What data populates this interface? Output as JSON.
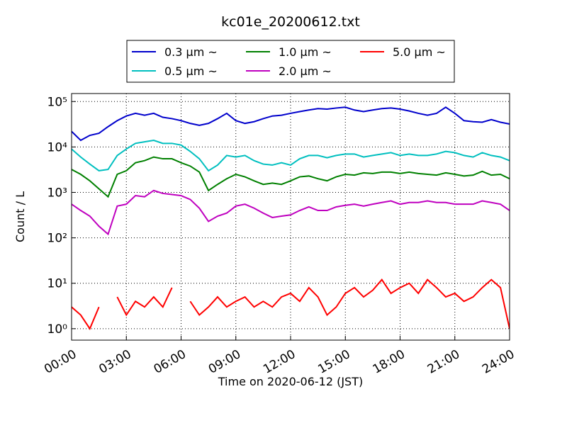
{
  "chart_data": {
    "type": "line",
    "title": "kc01e_20200612.txt",
    "x_label": "Time on 2020-06-12 (JST)",
    "y_label": "Count / L",
    "log_y": true,
    "grid": true,
    "legend_position": "top",
    "x": [
      0,
      0.5,
      1,
      1.5,
      2,
      2.5,
      3,
      3.5,
      4,
      4.5,
      5,
      5.5,
      6,
      6.5,
      7,
      7.5,
      8,
      8.5,
      9,
      9.5,
      10,
      10.5,
      11,
      11.5,
      12,
      12.5,
      13,
      13.5,
      14,
      14.5,
      15,
      15.5,
      16,
      16.5,
      17,
      17.5,
      18,
      18.5,
      19,
      19.5,
      20,
      20.5,
      21,
      21.5,
      22,
      22.5,
      23,
      23.5,
      24
    ],
    "xlim": [
      0,
      24
    ],
    "xticks": [
      {
        "value": 0,
        "label": "00:00"
      },
      {
        "value": 3,
        "label": "03:00"
      },
      {
        "value": 6,
        "label": "06:00"
      },
      {
        "value": 9,
        "label": "09:00"
      },
      {
        "value": 12,
        "label": "12:00"
      },
      {
        "value": 15,
        "label": "15:00"
      },
      {
        "value": 18,
        "label": "18:00"
      },
      {
        "value": 21,
        "label": "21:00"
      },
      {
        "value": 24,
        "label": "24:00"
      }
    ],
    "ylim": [
      0.56,
      150000
    ],
    "yticks": [
      {
        "value": 1,
        "label": "10⁰"
      },
      {
        "value": 10,
        "label": "10¹"
      },
      {
        "value": 100,
        "label": "10²"
      },
      {
        "value": 1000,
        "label": "10³"
      },
      {
        "value": 10000,
        "label": "10⁴"
      },
      {
        "value": 100000,
        "label": "10⁵"
      }
    ],
    "series": [
      {
        "name": "0.3 μm ~",
        "color": "#0000cc",
        "values": [
          22000,
          14000,
          18000,
          20000,
          28000,
          38000,
          48000,
          55000,
          50000,
          55000,
          45000,
          42000,
          38000,
          33000,
          30000,
          33000,
          42000,
          55000,
          38000,
          33000,
          36000,
          42000,
          48000,
          50000,
          55000,
          60000,
          65000,
          70000,
          68000,
          72000,
          75000,
          65000,
          60000,
          65000,
          70000,
          72000,
          68000,
          62000,
          55000,
          50000,
          55000,
          75000,
          55000,
          38000,
          36000,
          35000,
          40000,
          35000,
          32000
        ]
      },
      {
        "name": "0.5 μm ~",
        "color": "#00bfbf",
        "values": [
          9000,
          6000,
          4200,
          3000,
          3200,
          6500,
          9000,
          12000,
          13000,
          14000,
          12000,
          12000,
          11000,
          8000,
          5500,
          3000,
          4000,
          6500,
          6000,
          6500,
          5000,
          4200,
          4000,
          4500,
          4000,
          5500,
          6500,
          6500,
          5800,
          6500,
          7000,
          7000,
          6000,
          6500,
          7000,
          7500,
          6500,
          7000,
          6500,
          6500,
          7000,
          8000,
          7500,
          6500,
          6000,
          7500,
          6500,
          6000,
          5000
        ]
      },
      {
        "name": "1.0 μm ~",
        "color": "#008000",
        "values": [
          3200,
          2500,
          1800,
          1200,
          800,
          2500,
          3000,
          4500,
          5000,
          6000,
          5500,
          5500,
          4500,
          3800,
          2800,
          1100,
          1500,
          2000,
          2500,
          2200,
          1800,
          1500,
          1600,
          1500,
          1800,
          2200,
          2300,
          2000,
          1800,
          2200,
          2500,
          2400,
          2700,
          2600,
          2800,
          2800,
          2600,
          2800,
          2600,
          2500,
          2400,
          2700,
          2500,
          2300,
          2400,
          2900,
          2400,
          2500,
          2000
        ]
      },
      {
        "name": "2.0 μm ~",
        "color": "#bf00bf",
        "values": [
          550,
          400,
          300,
          180,
          120,
          500,
          550,
          850,
          800,
          1100,
          950,
          900,
          850,
          700,
          450,
          230,
          300,
          350,
          500,
          550,
          450,
          350,
          280,
          300,
          320,
          400,
          480,
          400,
          400,
          480,
          520,
          550,
          500,
          550,
          600,
          650,
          550,
          600,
          600,
          650,
          600,
          600,
          550,
          550,
          550,
          650,
          600,
          550,
          400
        ]
      },
      {
        "name": "5.0 μm ~",
        "color": "#ff0000",
        "values": [
          3,
          2,
          1,
          3,
          null,
          5,
          2,
          4,
          3,
          5,
          3,
          8,
          null,
          4,
          2,
          3,
          5,
          3,
          4,
          5,
          3,
          4,
          3,
          5,
          6,
          4,
          8,
          5,
          2,
          3,
          6,
          8,
          5,
          7,
          12,
          6,
          8,
          10,
          6,
          12,
          8,
          5,
          6,
          4,
          5,
          8,
          12,
          8,
          1
        ]
      }
    ]
  }
}
